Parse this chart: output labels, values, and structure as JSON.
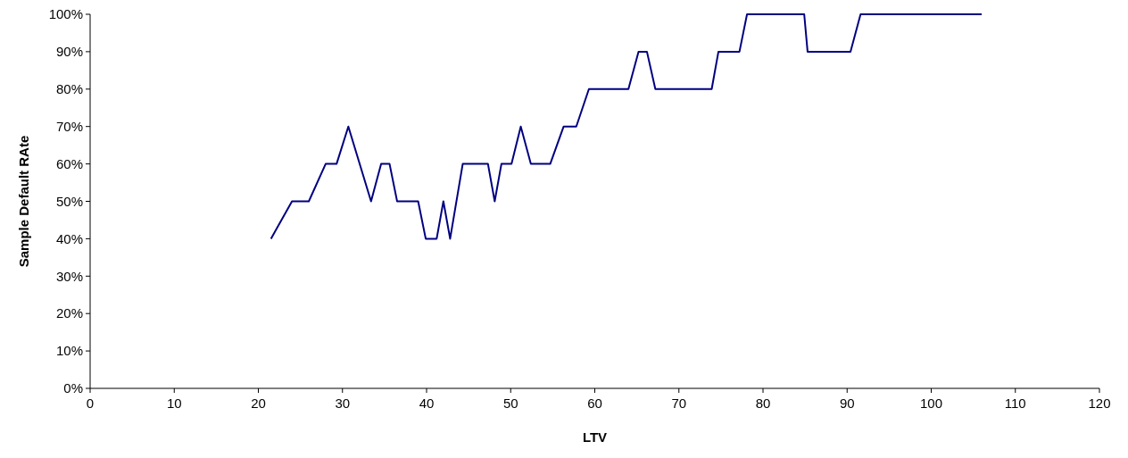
{
  "chart_data": {
    "type": "line",
    "xlabel": "LTV",
    "ylabel": "Sample Default RAte",
    "x": [
      21.5,
      24.0,
      26.0,
      28.0,
      29.3,
      30.7,
      33.4,
      34.6,
      35.6,
      36.5,
      39.0,
      39.9,
      41.2,
      42.0,
      42.8,
      44.3,
      47.3,
      48.1,
      48.9,
      50.1,
      51.2,
      52.4,
      54.7,
      56.3,
      57.8,
      59.3,
      64.0,
      65.2,
      66.2,
      67.2,
      73.9,
      74.7,
      77.2,
      78.1,
      84.9,
      85.3,
      90.4,
      91.6,
      106.0
    ],
    "series": [
      {
        "color": "#000080",
        "values": [
          40,
          50,
          50,
          60,
          60,
          70,
          50,
          60,
          60,
          50,
          50,
          40,
          40,
          50,
          40,
          60,
          60,
          50,
          60,
          60,
          70,
          60,
          60,
          70,
          70,
          80,
          80,
          90,
          90,
          80,
          80,
          90,
          90,
          100,
          100,
          90,
          90,
          100,
          100
        ]
      }
    ],
    "xlim": [
      0,
      120
    ],
    "xticks": [
      0,
      10,
      20,
      30,
      40,
      50,
      60,
      70,
      80,
      90,
      100,
      110,
      120
    ],
    "ylim": [
      0,
      100
    ],
    "yticks": [
      {
        "value": 0,
        "label": "0%"
      },
      {
        "value": 10,
        "label": "10%"
      },
      {
        "value": 20,
        "label": "20%"
      },
      {
        "value": 30,
        "label": "30%"
      },
      {
        "value": 40,
        "label": "40%"
      },
      {
        "value": 50,
        "label": "50%"
      },
      {
        "value": 60,
        "label": "60%"
      },
      {
        "value": 70,
        "label": "70%"
      },
      {
        "value": 80,
        "label": "80%"
      },
      {
        "value": 90,
        "label": "90%"
      },
      {
        "value": 100,
        "label": "100%"
      }
    ],
    "grid": false,
    "marker": "none",
    "line_style": "solid"
  }
}
